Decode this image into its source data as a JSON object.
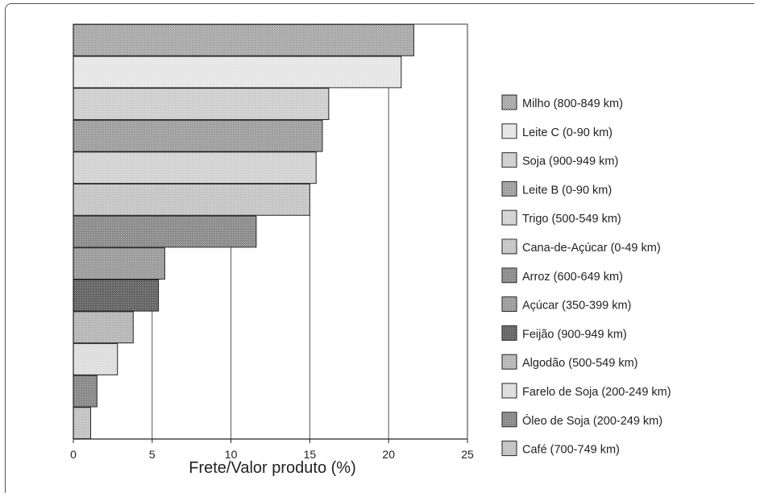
{
  "chart_data": {
    "type": "bar",
    "orientation": "horizontal",
    "title": "",
    "xlabel": "Frete/Valor produto (%)",
    "ylabel": "",
    "xlim": [
      0,
      25
    ],
    "xticks": [
      0,
      5,
      10,
      15,
      20,
      25
    ],
    "grid": "vertical",
    "legend_position": "right",
    "categories": [
      "Milho (800-849 km)",
      "Leite C (0-90 km)",
      "Soja (900-949 km)",
      "Leite B (0-90 km)",
      "Trigo (500-549 km)",
      "Cana-de-Açúcar (0-49 km)",
      "Arroz (600-649 km)",
      "Açúcar (350-399 km)",
      "Feijão (900-949 km)",
      "Algodão (500-549 km)",
      "Farelo de Soja (200-249 km)",
      "Óleo de Soja (200-249 km)",
      "Café (700-749 km)"
    ],
    "values": [
      21.6,
      20.8,
      16.2,
      15.8,
      15.4,
      15.0,
      11.6,
      5.8,
      5.4,
      3.8,
      2.8,
      1.5,
      1.1
    ],
    "colors": [
      "#aaaaaa",
      "#e6e6e6",
      "#cfcfcf",
      "#a0a0a0",
      "#d3d3d3",
      "#c6c6c6",
      "#8d8d8d",
      "#9d9d9d",
      "#666666",
      "#b7b7b7",
      "#dedede",
      "#8a8a8a",
      "#c3c3c3"
    ]
  }
}
